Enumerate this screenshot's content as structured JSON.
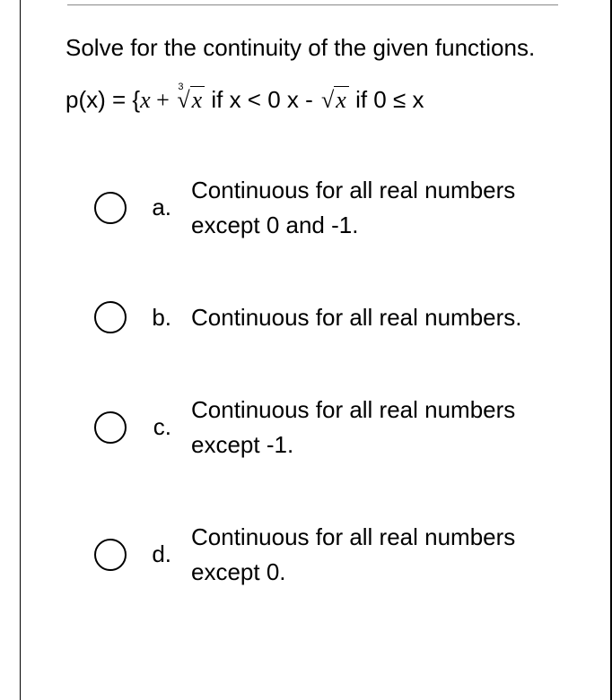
{
  "question": {
    "prompt": "Solve for the continuity of the given functions.",
    "formula_prefix": "p(x) = {",
    "formula_var": "x",
    "formula_plus": " + ",
    "formula_cond1": " if x < 0 x - ",
    "formula_cond2": " if 0 ≤ x",
    "cbrt_index": "3",
    "surd": "√"
  },
  "options": [
    {
      "label": "a.",
      "text": "Continuous for all real numbers except 0 and -1."
    },
    {
      "label": "b.",
      "text": "Continuous for all real numbers."
    },
    {
      "label": "c.",
      "text": "Continuous for all real numbers except -1."
    },
    {
      "label": "d.",
      "text": "Continuous for all real numbers except 0."
    }
  ],
  "styles": {
    "text_color": "#000000",
    "background": "#ffffff",
    "radio_border": "#000000",
    "font_size_body": 26,
    "radio_size": 36
  }
}
